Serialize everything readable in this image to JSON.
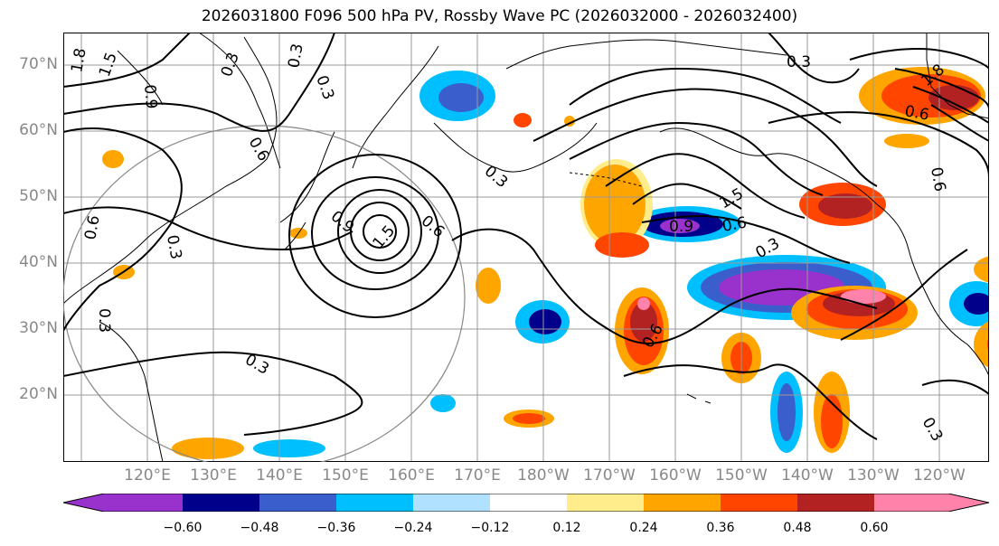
{
  "title": "2026031800 F096 500 hPa PV, Rossby Wave PC (2026032000 - 2026032400)",
  "lat_labels": [
    "70°N",
    "60°N",
    "50°N",
    "40°N",
    "30°N",
    "20°N"
  ],
  "lon_labels": [
    "120°E",
    "130°E",
    "140°E",
    "150°E",
    "160°E",
    "170°E",
    "180°W",
    "170°W",
    "160°W",
    "150°W",
    "140°W",
    "130°W",
    "120°W"
  ],
  "contour_labels": [
    "0.3",
    "0.6",
    "0.9",
    "1.5",
    "1.8"
  ],
  "colorbar": {
    "ticks": [
      "−0.60",
      "−0.48",
      "−0.36",
      "−0.24",
      "−0.12",
      "0.12",
      "0.24",
      "0.36",
      "0.48",
      "0.60"
    ],
    "colors": [
      "#9932cc",
      "#00008b",
      "#3a5fcd",
      "#00bfff",
      "#b0e2ff",
      "#ffffff",
      "#ffec8b",
      "#ffa500",
      "#ff4500",
      "#b22222",
      "#ff82ab"
    ]
  },
  "legend_colors": {
    "neg_strong": "#9932cc",
    "neg": "#3a5fcd",
    "pos": "#ffa500",
    "pos_strong": "#b22222"
  }
}
